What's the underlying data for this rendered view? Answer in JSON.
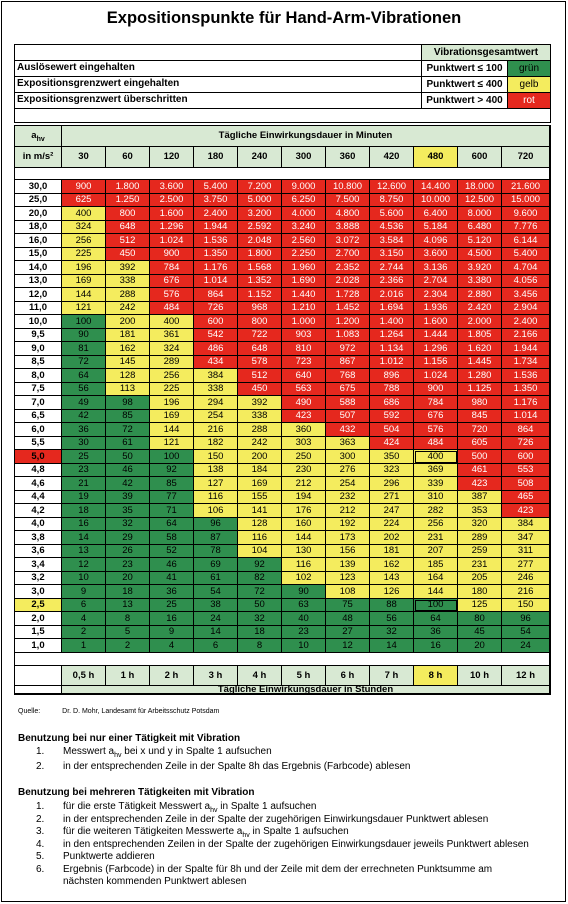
{
  "title": "Expositionspunkte für Hand-Arm-Vibrationen",
  "header": {
    "vgt_label": "Vibrationsgesamtwert",
    "rows": [
      {
        "label": "Auslösewert eingehalten",
        "punkt": "Punktwert ≤ 100",
        "color_word": "grün",
        "color": "g"
      },
      {
        "label": "Expositionsgrenzwert eingehalten",
        "punkt": "Punktwert ≤ 400",
        "color_word": "gelb",
        "color": "y"
      },
      {
        "label": "Expositionsgrenzwert überschritten",
        "punkt": "Punktwert > 400",
        "color_word": "rot",
        "color": "r"
      }
    ]
  },
  "table": {
    "ahv_label": "a",
    "ahv_sub": "hv",
    "unit_label": "in m/s²",
    "minutes_title": "Tägliche Einwirkungsdauer in Minuten",
    "hours_title": "Tägliche Einwirkungsdauer in Stunden",
    "minutes": [
      "30",
      "60",
      "120",
      "180",
      "240",
      "300",
      "360",
      "420",
      "480",
      "600",
      "720"
    ],
    "hours": [
      "0,5 h",
      "1 h",
      "2 h",
      "3 h",
      "4 h",
      "5 h",
      "6 h",
      "7 h",
      "8 h",
      "10 h",
      "12 h"
    ],
    "rows": [
      {
        "a": "30,0",
        "v": [
          "900",
          "1.800",
          "3.600",
          "5.400",
          "7.200",
          "9.000",
          "10.800",
          "12.600",
          "14.400",
          "18.000",
          "21.600"
        ]
      },
      {
        "a": "25,0",
        "v": [
          "625",
          "1.250",
          "2.500",
          "3.750",
          "5.000",
          "6.250",
          "7.500",
          "8.750",
          "10.000",
          "12.500",
          "15.000"
        ]
      },
      {
        "a": "20,0",
        "v": [
          "400",
          "800",
          "1.600",
          "2.400",
          "3.200",
          "4.000",
          "4.800",
          "5.600",
          "6.400",
          "8.000",
          "9.600"
        ]
      },
      {
        "a": "18,0",
        "v": [
          "324",
          "648",
          "1.296",
          "1.944",
          "2.592",
          "3.240",
          "3.888",
          "4.536",
          "5.184",
          "6.480",
          "7.776"
        ]
      },
      {
        "a": "16,0",
        "v": [
          "256",
          "512",
          "1.024",
          "1.536",
          "2.048",
          "2.560",
          "3.072",
          "3.584",
          "4.096",
          "5.120",
          "6.144"
        ]
      },
      {
        "a": "15,0",
        "v": [
          "225",
          "450",
          "900",
          "1.350",
          "1.800",
          "2.250",
          "2.700",
          "3.150",
          "3.600",
          "4.500",
          "5.400"
        ]
      },
      {
        "a": "14,0",
        "v": [
          "196",
          "392",
          "784",
          "1.176",
          "1.568",
          "1.960",
          "2.352",
          "2.744",
          "3.136",
          "3.920",
          "4.704"
        ]
      },
      {
        "a": "13,0",
        "v": [
          "169",
          "338",
          "676",
          "1.014",
          "1.352",
          "1.690",
          "2.028",
          "2.366",
          "2.704",
          "3.380",
          "4.056"
        ]
      },
      {
        "a": "12,0",
        "v": [
          "144",
          "288",
          "576",
          "864",
          "1.152",
          "1.440",
          "1.728",
          "2.016",
          "2.304",
          "2.880",
          "3.456"
        ]
      },
      {
        "a": "11,0",
        "v": [
          "121",
          "242",
          "484",
          "726",
          "968",
          "1.210",
          "1.452",
          "1.694",
          "1.936",
          "2.420",
          "2.904"
        ]
      },
      {
        "a": "10,0",
        "v": [
          "100",
          "200",
          "400",
          "600",
          "800",
          "1.000",
          "1.200",
          "1.400",
          "1.600",
          "2.000",
          "2.400"
        ]
      },
      {
        "a": "9,5",
        "v": [
          "90",
          "181",
          "361",
          "542",
          "722",
          "903",
          "1.083",
          "1.264",
          "1.444",
          "1.805",
          "2.166"
        ]
      },
      {
        "a": "9,0",
        "v": [
          "81",
          "162",
          "324",
          "486",
          "648",
          "810",
          "972",
          "1.134",
          "1.296",
          "1.620",
          "1.944"
        ]
      },
      {
        "a": "8,5",
        "v": [
          "72",
          "145",
          "289",
          "434",
          "578",
          "723",
          "867",
          "1.012",
          "1.156",
          "1.445",
          "1.734"
        ]
      },
      {
        "a": "8,0",
        "v": [
          "64",
          "128",
          "256",
          "384",
          "512",
          "640",
          "768",
          "896",
          "1.024",
          "1.280",
          "1.536"
        ]
      },
      {
        "a": "7,5",
        "v": [
          "56",
          "113",
          "225",
          "338",
          "450",
          "563",
          "675",
          "788",
          "900",
          "1.125",
          "1.350"
        ]
      },
      {
        "a": "7,0",
        "v": [
          "49",
          "98",
          "196",
          "294",
          "392",
          "490",
          "588",
          "686",
          "784",
          "980",
          "1.176"
        ]
      },
      {
        "a": "6,5",
        "v": [
          "42",
          "85",
          "169",
          "254",
          "338",
          "423",
          "507",
          "592",
          "676",
          "845",
          "1.014"
        ]
      },
      {
        "a": "6,0",
        "v": [
          "36",
          "72",
          "144",
          "216",
          "288",
          "360",
          "432",
          "504",
          "576",
          "720",
          "864"
        ]
      },
      {
        "a": "5,5",
        "v": [
          "30",
          "61",
          "121",
          "182",
          "242",
          "303",
          "363",
          "424",
          "484",
          "605",
          "726"
        ]
      },
      {
        "a": "5,0",
        "v": [
          "25",
          "50",
          "100",
          "150",
          "200",
          "250",
          "300",
          "350",
          "400",
          "500",
          "600"
        ]
      },
      {
        "a": "4,8",
        "v": [
          "23",
          "46",
          "92",
          "138",
          "184",
          "230",
          "276",
          "323",
          "369",
          "461",
          "553"
        ]
      },
      {
        "a": "4,6",
        "v": [
          "21",
          "42",
          "85",
          "127",
          "169",
          "212",
          "254",
          "296",
          "339",
          "423",
          "508"
        ]
      },
      {
        "a": "4,4",
        "v": [
          "19",
          "39",
          "77",
          "116",
          "155",
          "194",
          "232",
          "271",
          "310",
          "387",
          "465"
        ]
      },
      {
        "a": "4,2",
        "v": [
          "18",
          "35",
          "71",
          "106",
          "141",
          "176",
          "212",
          "247",
          "282",
          "353",
          "423"
        ]
      },
      {
        "a": "4,0",
        "v": [
          "16",
          "32",
          "64",
          "96",
          "128",
          "160",
          "192",
          "224",
          "256",
          "320",
          "384"
        ]
      },
      {
        "a": "3,8",
        "v": [
          "14",
          "29",
          "58",
          "87",
          "116",
          "144",
          "173",
          "202",
          "231",
          "289",
          "347"
        ]
      },
      {
        "a": "3,6",
        "v": [
          "13",
          "26",
          "52",
          "78",
          "104",
          "130",
          "156",
          "181",
          "207",
          "259",
          "311"
        ]
      },
      {
        "a": "3,4",
        "v": [
          "12",
          "23",
          "46",
          "69",
          "92",
          "116",
          "139",
          "162",
          "185",
          "231",
          "277"
        ]
      },
      {
        "a": "3,2",
        "v": [
          "10",
          "20",
          "41",
          "61",
          "82",
          "102",
          "123",
          "143",
          "164",
          "205",
          "246"
        ]
      },
      {
        "a": "3,0",
        "v": [
          "9",
          "18",
          "36",
          "54",
          "72",
          "90",
          "108",
          "126",
          "144",
          "180",
          "216"
        ]
      },
      {
        "a": "2,5",
        "v": [
          "6",
          "13",
          "25",
          "38",
          "50",
          "63",
          "75",
          "88",
          "100",
          "125",
          "150"
        ]
      },
      {
        "a": "2,0",
        "v": [
          "4",
          "8",
          "16",
          "24",
          "32",
          "40",
          "48",
          "56",
          "64",
          "80",
          "96"
        ]
      },
      {
        "a": "1,5",
        "v": [
          "2",
          "5",
          "9",
          "14",
          "18",
          "23",
          "27",
          "32",
          "36",
          "45",
          "54"
        ]
      },
      {
        "a": "1,0",
        "v": [
          "1",
          "2",
          "4",
          "6",
          "8",
          "10",
          "12",
          "14",
          "16",
          "20",
          "24"
        ]
      }
    ]
  },
  "source": {
    "label": "Quelle:",
    "text": "Dr. D. Mohr, Landesamt für Arbeitsschutz Potsdam"
  },
  "usage_single": {
    "title": "Benutzung bei nur einer Tätigkeit mit Vibration",
    "items": [
      {
        "n": "1.",
        "pre": "Messwert a",
        "sub": "hv",
        "post": " bei x und y in Spalte 1 aufsuchen"
      },
      {
        "n": "2.",
        "pre": "in der entsprechenden Zeile in der Spalte 8h das Ergebnis (Farbcode) ablesen",
        "sub": "",
        "post": ""
      }
    ]
  },
  "usage_multi": {
    "title": "Benutzung bei mehreren Tätigkeiten mit Vibration",
    "items": [
      {
        "n": "1.",
        "pre": "für die erste Tätigkeit Messwert a",
        "sub": "hv",
        "post": " in Spalte 1 aufsuchen"
      },
      {
        "n": "2.",
        "pre": "in der entsprechenden Zeile in der Spalte der zugehörigen Einwirkungsdauer Punktwert ablesen",
        "sub": "",
        "post": ""
      },
      {
        "n": "3.",
        "pre": "für die weiteren Tätigkeiten Messwerte a",
        "sub": "hv",
        "post": " in Spalte 1 aufsuchen"
      },
      {
        "n": "4.",
        "pre": "in den entsprechenden Zeilen in der Spalte der zugehörigen Einwirkungsdauer jeweils Punktwert ablesen",
        "sub": "",
        "post": ""
      },
      {
        "n": "5.",
        "pre": "Punktwerte addieren",
        "sub": "",
        "post": ""
      },
      {
        "n": "6.",
        "pre": "Ergebnis (Farbcode) in der Spalte für 8h und der Zeile mit dem der errechneten Punktsumme am",
        "sub": "",
        "post": ""
      },
      {
        "n": "",
        "pre": "nächsten kommenden Punktwert ablesen",
        "sub": "",
        "post": ""
      }
    ]
  },
  "colors": {
    "g": "#2f8f4e",
    "y": "#f4ec5e",
    "r": "#e5281e",
    "header_green": "#d8e9d3"
  }
}
